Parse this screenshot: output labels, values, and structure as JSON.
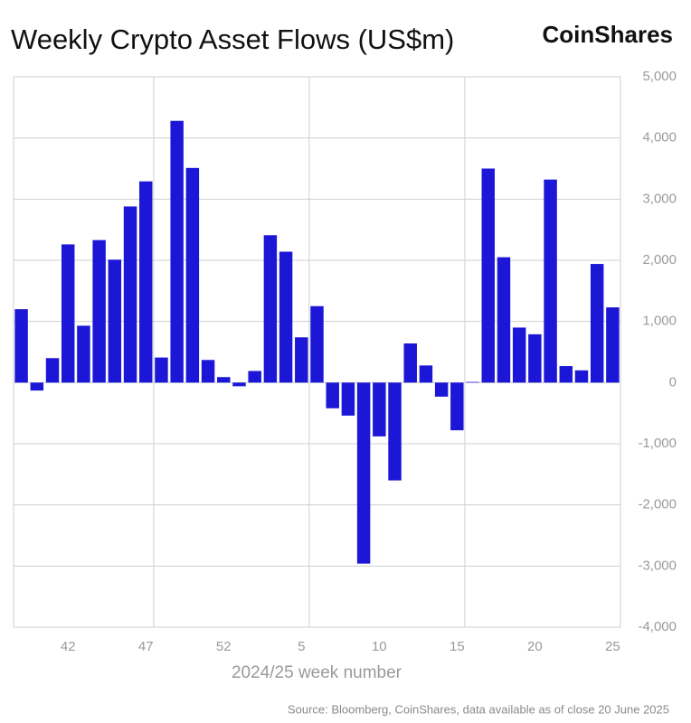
{
  "chart_data": {
    "type": "bar",
    "title": "Weekly Crypto Asset Flows (US$m)",
    "brand": "CoinShares",
    "x_label": "2024/25 week number",
    "source": "Source: Bloomberg, CoinShares, data available as of close 20 June 2025",
    "categories": [
      null,
      null,
      null,
      "42",
      null,
      null,
      null,
      null,
      "47",
      null,
      null,
      null,
      null,
      "52",
      null,
      null,
      null,
      null,
      "5",
      null,
      null,
      null,
      null,
      "10",
      null,
      null,
      null,
      null,
      "15",
      null,
      null,
      null,
      null,
      "20",
      null,
      null,
      null,
      null,
      "25"
    ],
    "values": [
      1200,
      -130,
      400,
      2260,
      930,
      2330,
      2010,
      2880,
      3290,
      410,
      4280,
      3510,
      370,
      90,
      -60,
      190,
      2410,
      2140,
      740,
      1250,
      -420,
      -540,
      -2960,
      -880,
      -1600,
      640,
      280,
      -230,
      -780,
      10,
      3500,
      2050,
      900,
      790,
      3320,
      270,
      200,
      1940,
      1230
    ],
    "color": "#1c16d6",
    "ylim": [
      -4000,
      5000
    ],
    "yticks": [
      {
        "value": -4000,
        "label": "-4,000"
      },
      {
        "value": -3000,
        "label": "-3,000"
      },
      {
        "value": -2000,
        "label": "-2,000"
      },
      {
        "value": -1000,
        "label": "-1,000"
      },
      0,
      {
        "value": 1000,
        "label": "1,000"
      },
      {
        "value": 2000,
        "label": "2,000"
      },
      {
        "value": 3000,
        "label": "3,000"
      },
      {
        "value": 4000,
        "label": "4,000"
      },
      {
        "value": 5000,
        "label": "5,000"
      }
    ],
    "grid": true
  }
}
